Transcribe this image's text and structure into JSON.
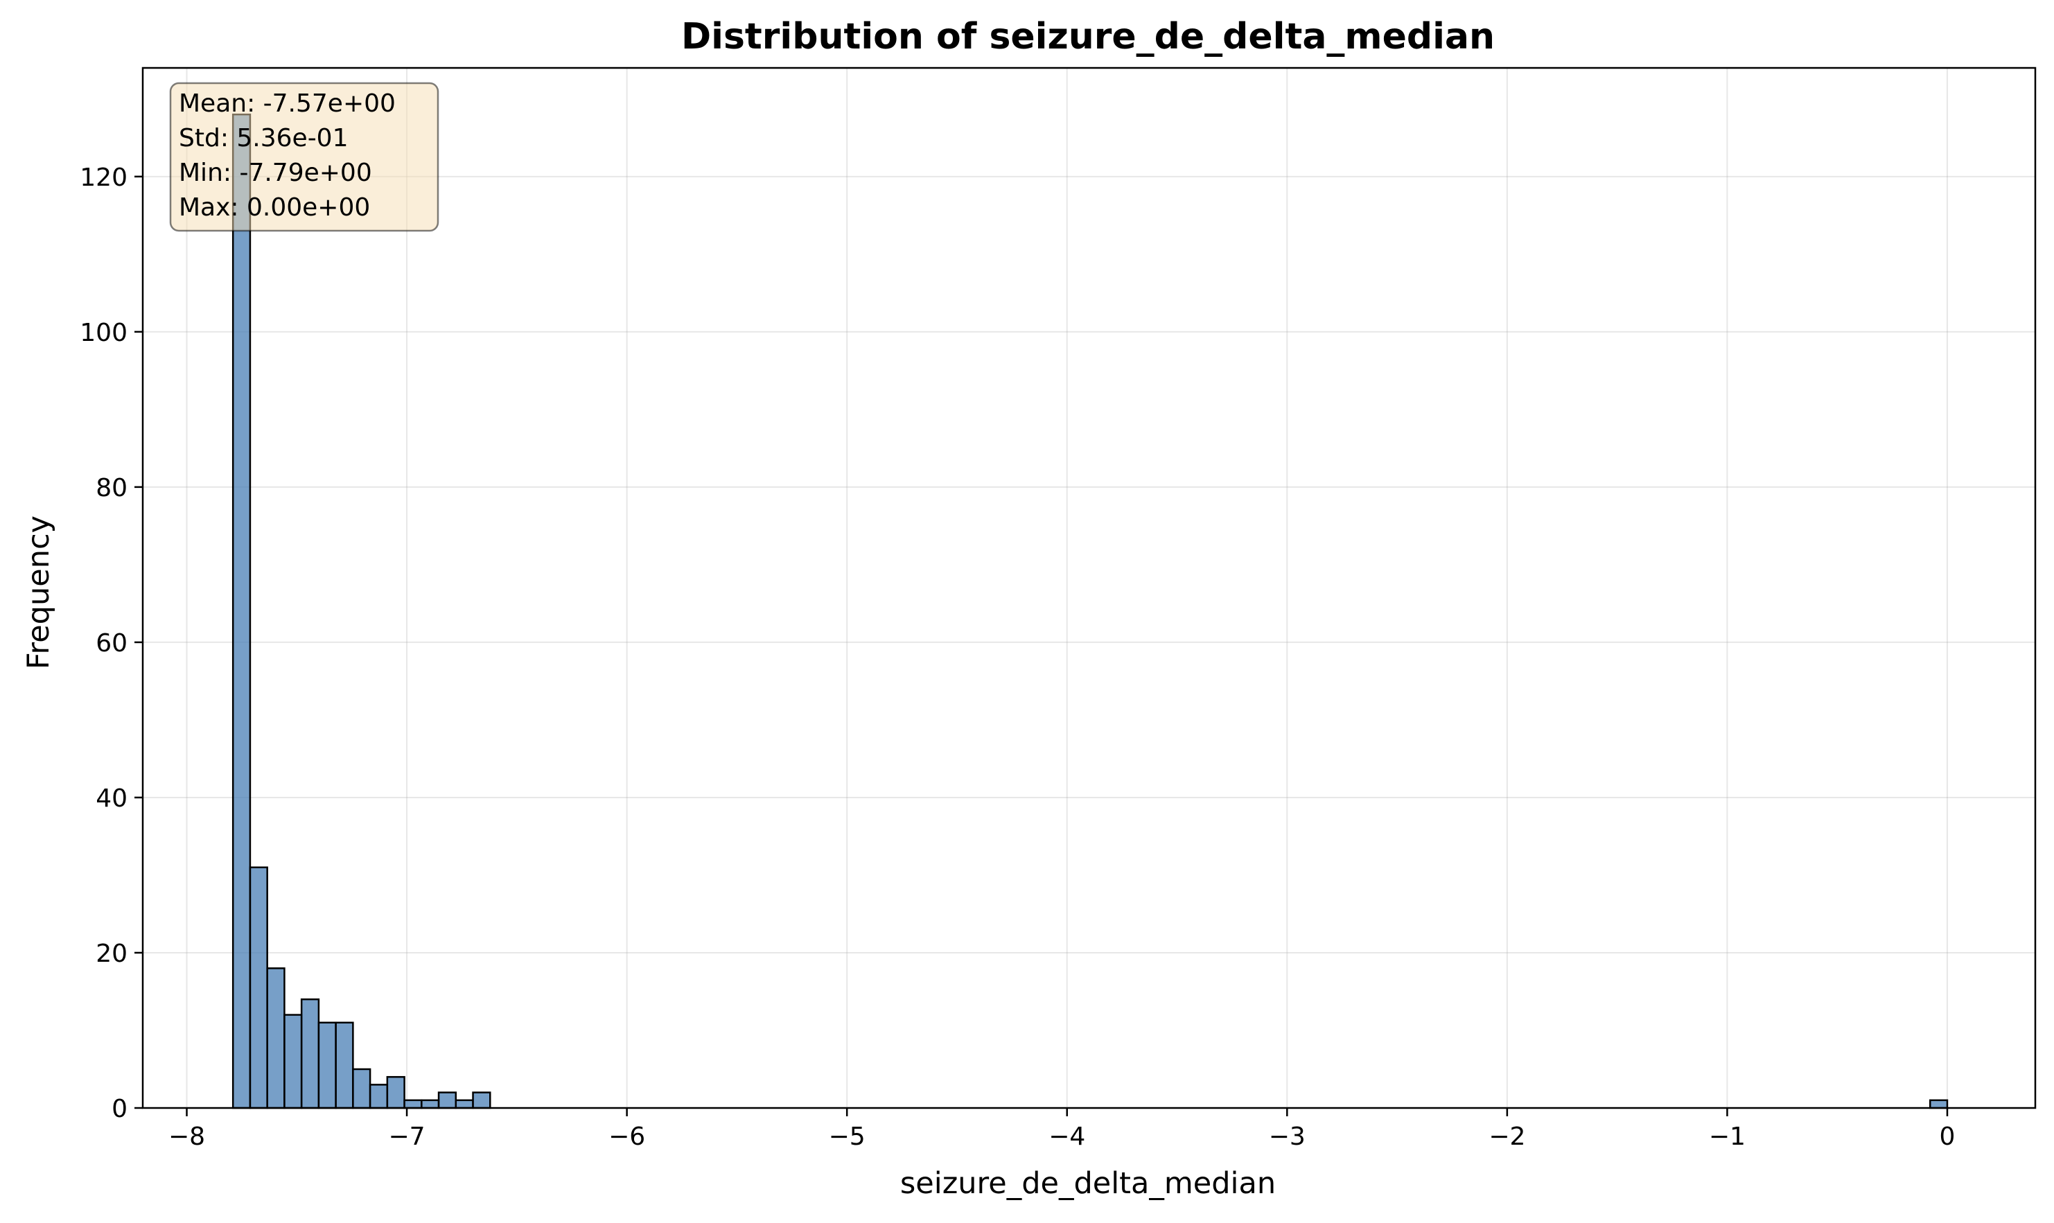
{
  "chart_data": {
    "type": "bar",
    "title": "Distribution of seizure_de_delta_median",
    "xlabel": "seizure_de_delta_median",
    "ylabel": "Frequency",
    "xlim": [
      -8.2,
      0.4
    ],
    "ylim": [
      0,
      134
    ],
    "xticks": [
      -8,
      -7,
      -6,
      -5,
      -4,
      -3,
      -2,
      -1,
      0
    ],
    "xtick_labels": [
      "−8",
      "−7",
      "−6",
      "−5",
      "−4",
      "−3",
      "−2",
      "−1",
      "0"
    ],
    "yticks": [
      0,
      20,
      40,
      60,
      80,
      100,
      120
    ],
    "ytick_labels": [
      "0",
      "20",
      "40",
      "60",
      "80",
      "100",
      "120"
    ],
    "grid": true,
    "bar_color": "#4a7fb5",
    "bar_edge_color": "#000000",
    "bins": {
      "start": -7.79,
      "width": 0.0779,
      "counts": [
        128,
        31,
        18,
        12,
        14,
        11,
        11,
        5,
        3,
        4,
        1,
        1,
        2,
        1,
        2,
        0,
        0,
        0,
        0,
        0,
        0,
        0,
        0,
        0,
        0,
        0,
        0,
        0,
        0,
        0,
        0,
        0,
        0,
        0,
        0,
        0,
        0,
        0,
        0,
        0,
        0,
        0,
        0,
        0,
        0,
        0,
        0,
        0,
        0,
        0,
        0,
        0,
        0,
        0,
        0,
        0,
        0,
        0,
        0,
        0,
        0,
        0,
        0,
        0,
        0,
        0,
        0,
        0,
        0,
        0,
        0,
        0,
        0,
        0,
        0,
        0,
        0,
        0,
        0,
        0,
        0,
        0,
        0,
        0,
        0,
        0,
        0,
        0,
        0,
        0,
        0,
        0,
        0,
        0,
        0,
        0,
        0,
        0,
        0,
        1
      ]
    },
    "stats_box": {
      "lines": [
        "Mean: -7.57e+00",
        "Std: 5.36e-01",
        "Min: -7.79e+00",
        "Max: 0.00e+00"
      ],
      "placement": "top-left",
      "background": "#f5deb3"
    }
  }
}
